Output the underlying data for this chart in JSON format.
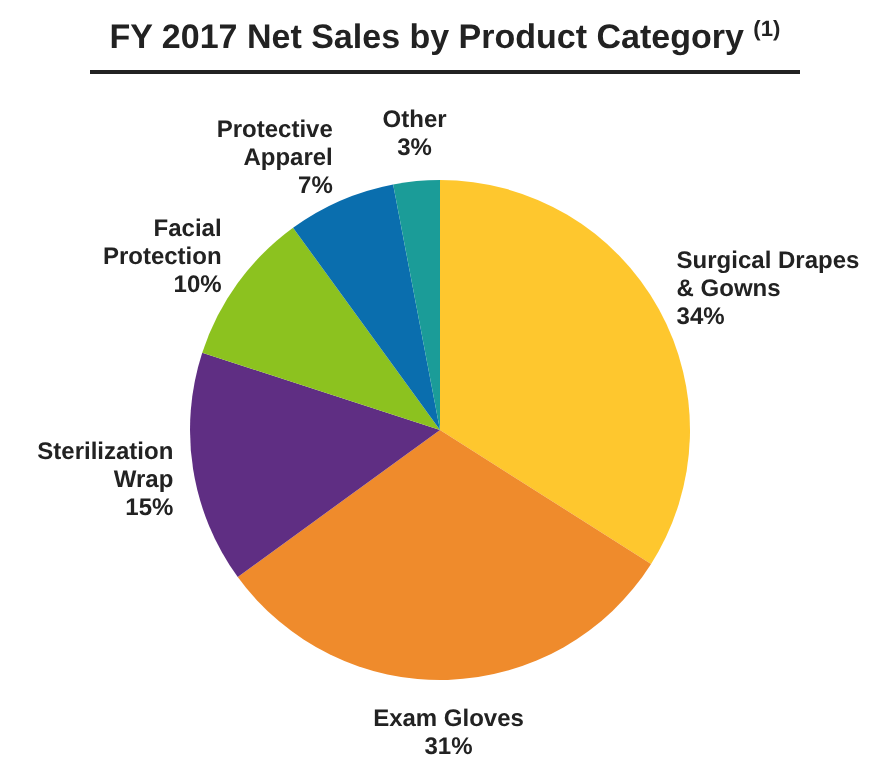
{
  "chart_data": {
    "type": "pie",
    "title": "FY 2017 Net Sales by Product Category $^{(1)}$",
    "categories": [
      "Surgical Drapes & Gowns",
      "Exam Gloves",
      "Sterilization Wrap",
      "Facial Protection",
      "Protective Apparel",
      "Other"
    ],
    "values": [
      34,
      31,
      15,
      10,
      7,
      3
    ],
    "colors": [
      "#fec72e",
      "#ef8b2c",
      "#5f2e83",
      "#8cc21f",
      "#0a6eae",
      "#1b9c98"
    ],
    "value_labels": [
      "34%",
      "31%",
      "15%",
      "10%",
      "7%",
      "3%"
    ]
  }
}
